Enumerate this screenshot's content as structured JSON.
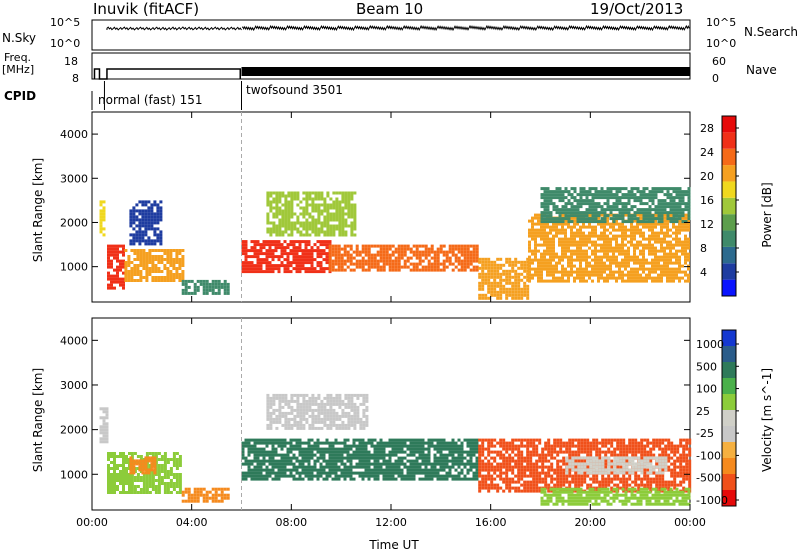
{
  "header": {
    "station": "Inuvik (fitACF)",
    "beam": "Beam 10",
    "date": "19/Oct/2013"
  },
  "nsky_panel": {
    "left_label": "N.Sky",
    "right_label": "N.Search",
    "left_ticks": [
      "10^5",
      "10^0"
    ],
    "right_ticks": [
      "10^5",
      "10^0"
    ]
  },
  "freq_panel": {
    "left_label_top": "Freq.",
    "left_label_bottom": "[MHz]",
    "right_label": "Nave",
    "left_ticks": [
      "18",
      "8"
    ],
    "right_ticks": [
      "60",
      "0"
    ]
  },
  "cpid": {
    "label": "CPID",
    "modes": [
      {
        "name": "normal (fast) 151",
        "start_hour": 0.5
      },
      {
        "name": "twofsound 3501",
        "start_hour": 6.0
      }
    ]
  },
  "colors": {
    "power": [
      "#0a14ff",
      "#1e3ca0",
      "#2c6a8e",
      "#3f8a6a",
      "#5c9e4c",
      "#a0c83a",
      "#f0d81e",
      "#f5a020",
      "#f56a18",
      "#f03018",
      "#e60a0a"
    ],
    "velocity": [
      "#e60a0a",
      "#f0501a",
      "#f58a1e",
      "#f5b040",
      "#c8c8c8",
      "#d0d0c8",
      "#8ccc3a",
      "#4ab04a",
      "#2e7a5a",
      "#2a5c8a",
      "#1438d0"
    ],
    "ground_scatter": "#bebebe"
  },
  "chart_data": [
    {
      "type": "heatmap",
      "title": "Power",
      "xlabel": "",
      "ylabel": "Slant Range [km]",
      "x_range_hours": [
        0,
        24
      ],
      "y_range_km": [
        200,
        4500
      ],
      "y_ticks": [
        1000,
        2000,
        3000,
        4000
      ],
      "y_tick_labels": [
        "1000",
        "2000",
        "3000",
        "4000"
      ],
      "colorbar_label": "Power [dB]",
      "colorbar_ticks": [
        "4",
        "8",
        "12",
        "16",
        "20",
        "24",
        "28"
      ],
      "colorbar_range": [
        0,
        30
      ],
      "regions": [
        {
          "t0": 0.3,
          "t1": 0.5,
          "r0": 1700,
          "r1": 2500,
          "value": 18
        },
        {
          "t0": 0.6,
          "t1": 1.3,
          "r0": 500,
          "r1": 1500,
          "value": 26
        },
        {
          "t0": 1.3,
          "t1": 3.6,
          "r0": 700,
          "r1": 1400,
          "value": 20
        },
        {
          "t0": 1.5,
          "t1": 2.8,
          "r0": 1500,
          "r1": 2500,
          "value": 4
        },
        {
          "t0": 3.6,
          "t1": 5.5,
          "r0": 400,
          "r1": 700,
          "value": 8
        },
        {
          "t0": 6.0,
          "t1": 9.5,
          "r0": 900,
          "r1": 1600,
          "value": 26
        },
        {
          "t0": 7.0,
          "t1": 10.5,
          "r0": 1700,
          "r1": 2700,
          "value": 16
        },
        {
          "t0": 9.5,
          "t1": 15.5,
          "r0": 900,
          "r1": 1500,
          "value": 24
        },
        {
          "t0": 15.5,
          "t1": 17.5,
          "r0": 300,
          "r1": 1200,
          "value": 20
        },
        {
          "t0": 17.5,
          "t1": 24.0,
          "r0": 700,
          "r1": 2200,
          "value": 22
        },
        {
          "t0": 18.0,
          "t1": 24.0,
          "r0": 2000,
          "r1": 2800,
          "value": 10
        }
      ]
    },
    {
      "type": "heatmap",
      "title": "Velocity",
      "xlabel": "Time UT",
      "ylabel": "Slant Range [km]",
      "x_range_hours": [
        0,
        24
      ],
      "x_ticks": [
        0,
        4,
        8,
        12,
        16,
        20,
        24
      ],
      "x_tick_labels": [
        "00:00",
        "04:00",
        "08:00",
        "12:00",
        "16:00",
        "20:00",
        "00:00"
      ],
      "y_range_km": [
        200,
        4500
      ],
      "y_ticks": [
        1000,
        2000,
        3000,
        4000
      ],
      "y_tick_labels": [
        "1000",
        "2000",
        "3000",
        "4000"
      ],
      "colorbar_label": "Velocity [m s^-1]",
      "colorbar_ticks": [
        "1000",
        "500",
        "100",
        "25",
        "-25",
        "-100",
        "-500",
        "-1000"
      ],
      "regions": [
        {
          "t0": 0.3,
          "t1": 0.6,
          "r0": 1700,
          "r1": 2500,
          "value": -25
        },
        {
          "t0": 0.6,
          "t1": 3.6,
          "r0": 600,
          "r1": 1500,
          "value": 100
        },
        {
          "t0": 1.5,
          "t1": 2.5,
          "r0": 1000,
          "r1": 1400,
          "value": -100
        },
        {
          "t0": 3.6,
          "t1": 5.5,
          "r0": 400,
          "r1": 700,
          "value": -100
        },
        {
          "t0": 6.0,
          "t1": 15.5,
          "r0": 900,
          "r1": 1800,
          "value": 500
        },
        {
          "t0": 7.0,
          "t1": 11.0,
          "r0": 2000,
          "r1": 2800,
          "value": -25
        },
        {
          "t0": 15.5,
          "t1": 24.0,
          "r0": 600,
          "r1": 1800,
          "value": -500
        },
        {
          "t0": 19.0,
          "t1": 23.0,
          "r0": 1000,
          "r1": 1400,
          "value": 25
        },
        {
          "t0": 18.0,
          "t1": 24.0,
          "r0": 300,
          "r1": 700,
          "value": 100
        }
      ]
    }
  ]
}
